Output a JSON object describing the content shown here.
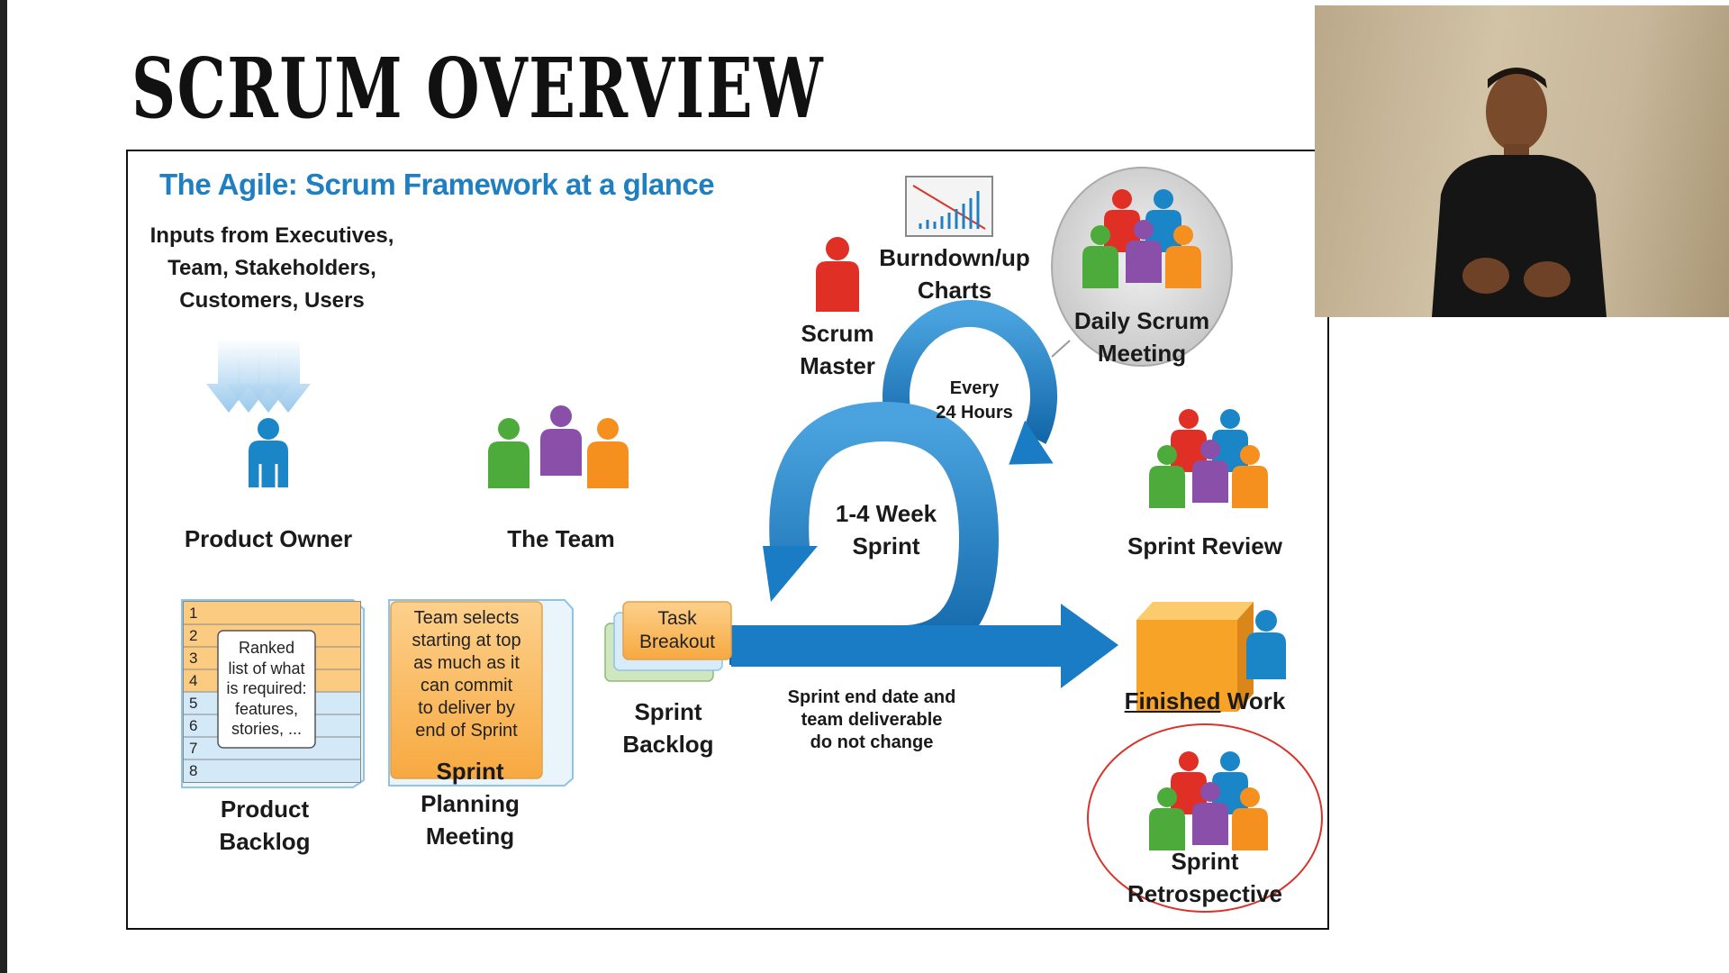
{
  "slide": {
    "title": "SCRUM OVERVIEW"
  },
  "diagram": {
    "title": "The Agile: Scrum Framework at a glance",
    "inputs": "Inputs from Executives,\nTeam, Stakeholders,\nCustomers, Users",
    "product_owner": "Product Owner",
    "the_team": "The Team",
    "scrum_master": "Scrum\nMaster",
    "burndown": "Burndown/up\nCharts",
    "daily_scrum": "Daily Scrum\nMeeting",
    "every_24": "Every\n24 Hours",
    "sprint_length": "1-4 Week\nSprint",
    "sprint_review": "Sprint Review",
    "finished_work_1": "Finished",
    "finished_work_2": " Work",
    "sprint_retro": "Sprint\nRetrospective",
    "product_backlog": "Product\nBacklog",
    "backlog_note": "Ranked\nlist of what\nis required:\nfeatures,\nstories, ...",
    "backlog_rows": [
      "1",
      "2",
      "3",
      "4",
      "5",
      "6",
      "7",
      "8"
    ],
    "planning_box": "Team selects\nstarting at top\nas much as it\ncan commit\nto deliver by\nend of Sprint",
    "sprint_planning": "Sprint\nPlanning\nMeeting",
    "task_breakout": "Task\nBreakout",
    "sprint_backlog": "Sprint\nBacklog",
    "sprint_end_note": "Sprint end date and\nteam deliverable\ndo not change"
  },
  "colors": {
    "accent_blue": "#1f7fc0",
    "arrow_blue": "#1a7cc4",
    "orange_box": "#fbbf6b",
    "backlog_blue": "#d8ecf8",
    "retro_circle": "#d9342b"
  },
  "icons": [
    "down-arrows-icon",
    "person-icon",
    "team-icon",
    "burndown-chart-icon",
    "box-icon",
    "cycle-arrow-icon"
  ]
}
